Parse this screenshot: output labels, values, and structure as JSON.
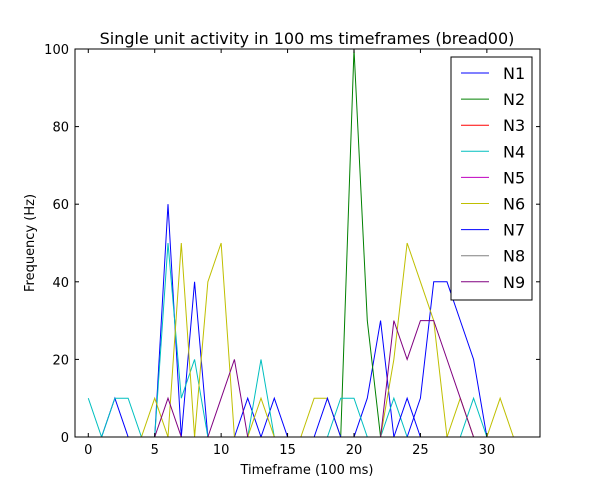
{
  "chart_data": {
    "type": "line",
    "title": "Single unit activity in 100 ms timeframes (bread00)",
    "xlabel": "Timeframe (100 ms)",
    "ylabel": "Frequency (Hz)",
    "xlim": [
      -1,
      34
    ],
    "ylim": [
      0,
      100
    ],
    "xticks": [
      0,
      5,
      10,
      15,
      20,
      25,
      30
    ],
    "yticks": [
      0,
      20,
      40,
      60,
      80,
      100
    ],
    "x": [
      0,
      1,
      2,
      3,
      4,
      5,
      6,
      7,
      8,
      9,
      10,
      11,
      12,
      13,
      14,
      15,
      16,
      17,
      18,
      19,
      20,
      21,
      22,
      23,
      24,
      25,
      26,
      27,
      28,
      29,
      30,
      31,
      32,
      33
    ],
    "legend_position": "top-right",
    "series": [
      {
        "name": "N1",
        "color": "#0000ff",
        "values": [
          0,
          0,
          10,
          0,
          0,
          0,
          60,
          0,
          40,
          0,
          0,
          0,
          10,
          0,
          10,
          0,
          0,
          0,
          0,
          0,
          0,
          10,
          30,
          0,
          0,
          10,
          40,
          40,
          30,
          20,
          0,
          0,
          0,
          0
        ]
      },
      {
        "name": "N2",
        "color": "#008000",
        "values": [
          0,
          0,
          0,
          0,
          0,
          0,
          0,
          0,
          0,
          0,
          0,
          0,
          0,
          0,
          0,
          0,
          0,
          0,
          0,
          0,
          100,
          30,
          0,
          0,
          0,
          0,
          0,
          0,
          0,
          0,
          0,
          0,
          0,
          0
        ]
      },
      {
        "name": "N3",
        "color": "#ff0000",
        "values": [
          0,
          0,
          0,
          0,
          0,
          0,
          0,
          0,
          0,
          0,
          0,
          0,
          0,
          0,
          0,
          0,
          0,
          0,
          0,
          0,
          0,
          0,
          0,
          0,
          0,
          0,
          0,
          0,
          0,
          0,
          0,
          0,
          0,
          0
        ]
      },
      {
        "name": "N4",
        "color": "#00bfbf",
        "values": [
          10,
          0,
          10,
          10,
          0,
          0,
          50,
          10,
          20,
          0,
          0,
          0,
          0,
          20,
          0,
          0,
          0,
          0,
          0,
          10,
          10,
          0,
          0,
          10,
          0,
          0,
          0,
          0,
          0,
          10,
          0,
          0,
          0,
          0
        ]
      },
      {
        "name": "N5",
        "color": "#bf00bf",
        "values": [
          0,
          0,
          0,
          0,
          0,
          0,
          0,
          0,
          0,
          0,
          0,
          0,
          0,
          0,
          0,
          0,
          0,
          0,
          0,
          0,
          0,
          0,
          0,
          0,
          0,
          0,
          0,
          0,
          0,
          0,
          0,
          0,
          0,
          0
        ]
      },
      {
        "name": "N6",
        "color": "#bfbf00",
        "values": [
          0,
          0,
          0,
          0,
          0,
          10,
          0,
          50,
          0,
          40,
          50,
          0,
          0,
          10,
          0,
          0,
          0,
          10,
          10,
          0,
          0,
          0,
          0,
          20,
          50,
          40,
          30,
          0,
          10,
          0,
          0,
          10,
          0,
          0
        ]
      },
      {
        "name": "N7",
        "color": "#0000ff",
        "values": [
          0,
          0,
          0,
          0,
          0,
          0,
          0,
          0,
          0,
          0,
          0,
          0,
          0,
          0,
          0,
          0,
          0,
          0,
          10,
          0,
          0,
          0,
          0,
          0,
          10,
          0,
          0,
          0,
          0,
          0,
          0,
          0,
          0,
          0
        ]
      },
      {
        "name": "N8",
        "color": "#808080",
        "values": [
          0,
          0,
          0,
          0,
          0,
          0,
          0,
          0,
          0,
          0,
          0,
          0,
          0,
          0,
          0,
          0,
          0,
          0,
          0,
          0,
          0,
          0,
          0,
          0,
          0,
          0,
          0,
          0,
          0,
          0,
          0,
          0,
          0,
          0
        ]
      },
      {
        "name": "N9",
        "color": "#800080",
        "values": [
          0,
          0,
          0,
          0,
          0,
          0,
          10,
          0,
          0,
          0,
          10,
          20,
          0,
          0,
          0,
          0,
          0,
          0,
          0,
          0,
          0,
          0,
          0,
          30,
          20,
          30,
          30,
          20,
          10,
          0,
          0,
          0,
          0,
          0
        ]
      }
    ]
  }
}
